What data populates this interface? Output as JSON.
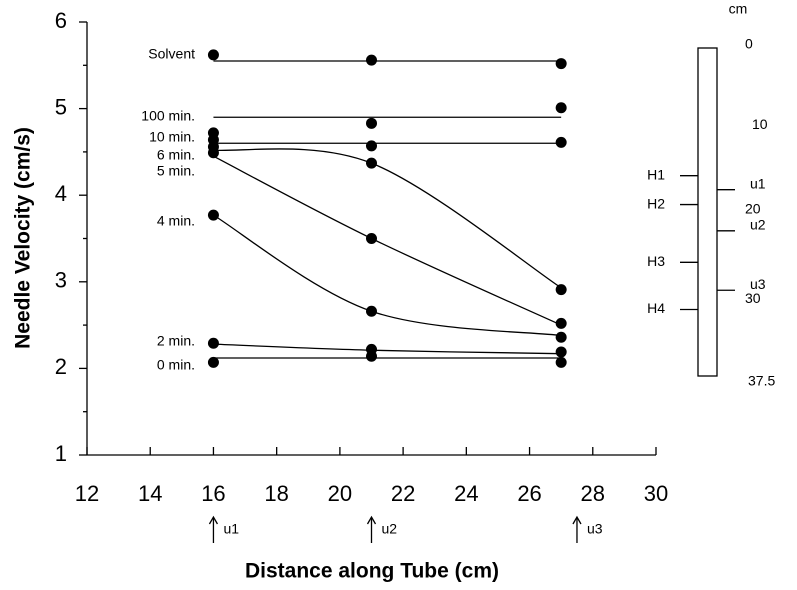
{
  "chart_data": {
    "type": "line",
    "x_label": "Distance along Tube (cm)",
    "y_label": "Needle Velocity (cm/s)",
    "x": [
      16,
      21,
      27
    ],
    "xlim": [
      12,
      30
    ],
    "xticks": [
      12,
      14,
      16,
      18,
      20,
      22,
      24,
      26,
      28,
      30
    ],
    "ylim": [
      1,
      6
    ],
    "yticks": [
      1,
      2,
      3,
      4,
      5,
      6
    ],
    "series": [
      {
        "name": "Solvent",
        "color": "#000000",
        "values": [
          5.62,
          5.56,
          5.52
        ],
        "fit": [
          5.55,
          5.55,
          5.55
        ]
      },
      {
        "name": "100 min.",
        "color": "#000000",
        "values": [
          4.72,
          4.83,
          5.01
        ],
        "fit": [
          4.9,
          4.9,
          4.9
        ]
      },
      {
        "name": "10 min.",
        "color": "#000000",
        "values": [
          4.64,
          4.57,
          4.61
        ],
        "fit": [
          4.6,
          4.6,
          4.6
        ]
      },
      {
        "name": "6 min.",
        "color": "#000000",
        "values": [
          4.56,
          4.37,
          2.91
        ],
        "fit": [
          4.52,
          4.37,
          2.93
        ]
      },
      {
        "name": "5 min.",
        "color": "#000000",
        "values": [
          4.49,
          3.5,
          2.52
        ],
        "fit": [
          4.45,
          3.5,
          2.5
        ]
      },
      {
        "name": "4 min.",
        "color": "#000000",
        "values": [
          3.77,
          2.66,
          2.36
        ],
        "fit": [
          3.77,
          2.66,
          2.38
        ]
      },
      {
        "name": "2 min.",
        "color": "#000000",
        "values": [
          2.29,
          2.22,
          2.19
        ],
        "fit": [
          2.28,
          2.21,
          2.17
        ]
      },
      {
        "name": "0 min.",
        "color": "#000000",
        "values": [
          2.07,
          2.14,
          2.07
        ],
        "fit": [
          2.12,
          2.12,
          2.12
        ]
      }
    ],
    "markers": [
      {
        "x": 16,
        "label": "u1"
      },
      {
        "x": 21,
        "label": "u2"
      },
      {
        "x": 27.5,
        "label": "u3"
      }
    ],
    "tube": {
      "unit": "cm",
      "ylim": [
        0,
        37.5
      ],
      "ticks": [
        0,
        10,
        20,
        30,
        37.5
      ],
      "sensors": [
        {
          "label": "H1",
          "pos": 14.6
        },
        {
          "label": "H2",
          "pos": 17.9
        },
        {
          "label": "H3",
          "pos": 24.5
        },
        {
          "label": "H4",
          "pos": 29.9
        }
      ],
      "ports": [
        {
          "label": "u1",
          "pos": 16.2
        },
        {
          "label": "u2",
          "pos": 20.9
        },
        {
          "label": "u3",
          "pos": 27.7
        }
      ]
    }
  }
}
